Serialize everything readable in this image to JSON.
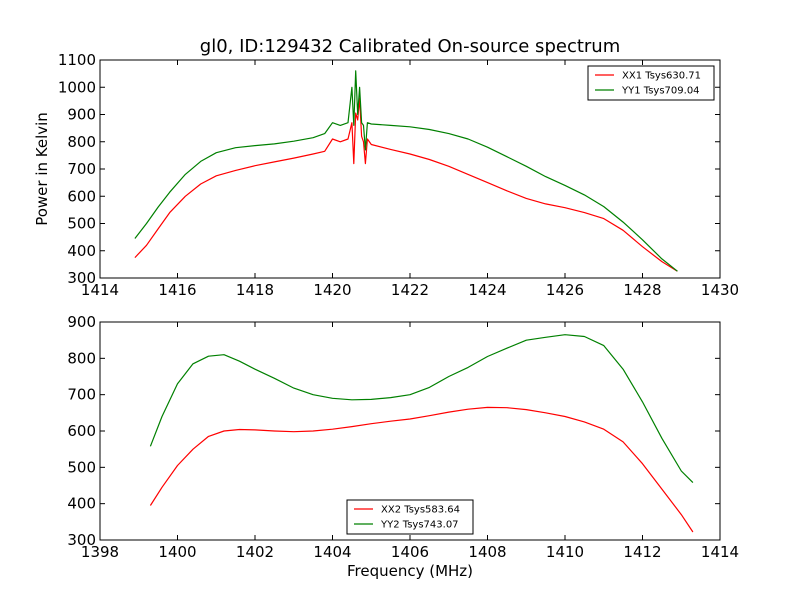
{
  "chart_data": [
    {
      "type": "line",
      "title": "gl0, ID:129432 Calibrated On-source spectrum",
      "xlabel": "",
      "ylabel": "Power in Kelvin",
      "xlim": [
        1414,
        1430
      ],
      "ylim": [
        300,
        1100
      ],
      "xticks": [
        1414,
        1416,
        1418,
        1420,
        1422,
        1424,
        1426,
        1428,
        1430
      ],
      "yticks": [
        300,
        400,
        500,
        600,
        700,
        800,
        900,
        1000,
        1100
      ],
      "grid": false,
      "legend": "top-right",
      "series": [
        {
          "name": "XX1 Tsys630.71",
          "color": "#ff0000",
          "x": [
            1414.9,
            1415.2,
            1415.5,
            1415.8,
            1416.2,
            1416.6,
            1417.0,
            1417.5,
            1418.0,
            1418.5,
            1419.0,
            1419.5,
            1419.8,
            1420.0,
            1420.2,
            1420.4,
            1420.5,
            1420.55,
            1420.6,
            1420.65,
            1420.7,
            1420.75,
            1420.8,
            1420.85,
            1420.9,
            1421.0,
            1421.5,
            1422.0,
            1422.5,
            1423.0,
            1423.5,
            1424.0,
            1424.5,
            1425.0,
            1425.5,
            1426.0,
            1426.5,
            1427.0,
            1427.5,
            1428.0,
            1428.5,
            1428.9
          ],
          "y": [
            375,
            420,
            480,
            540,
            600,
            645,
            675,
            695,
            712,
            726,
            740,
            755,
            765,
            810,
            800,
            810,
            870,
            720,
            905,
            880,
            960,
            820,
            800,
            720,
            810,
            790,
            772,
            755,
            735,
            710,
            680,
            650,
            620,
            592,
            572,
            558,
            540,
            518,
            475,
            415,
            360,
            325
          ]
        },
        {
          "name": "YY1 Tsys709.04",
          "color": "#008000",
          "x": [
            1414.9,
            1415.2,
            1415.5,
            1415.8,
            1416.2,
            1416.6,
            1417.0,
            1417.5,
            1418.0,
            1418.5,
            1419.0,
            1419.5,
            1419.8,
            1420.0,
            1420.2,
            1420.4,
            1420.5,
            1420.55,
            1420.6,
            1420.65,
            1420.7,
            1420.75,
            1420.8,
            1420.85,
            1420.9,
            1421.0,
            1421.5,
            1422.0,
            1422.5,
            1423.0,
            1423.5,
            1424.0,
            1424.5,
            1425.0,
            1425.5,
            1426.0,
            1426.5,
            1427.0,
            1427.5,
            1428.0,
            1428.5,
            1428.9
          ],
          "y": [
            445,
            500,
            560,
            615,
            680,
            728,
            760,
            778,
            786,
            792,
            802,
            815,
            830,
            870,
            860,
            870,
            1000,
            860,
            1060,
            900,
            1000,
            870,
            860,
            770,
            870,
            865,
            860,
            855,
            845,
            830,
            810,
            780,
            745,
            710,
            672,
            640,
            605,
            562,
            505,
            440,
            370,
            325
          ]
        }
      ]
    },
    {
      "type": "line",
      "title": "",
      "xlabel": "Frequency (MHz)",
      "ylabel": "",
      "xlim": [
        1398,
        1414
      ],
      "ylim": [
        300,
        900
      ],
      "xticks": [
        1398,
        1400,
        1402,
        1404,
        1406,
        1408,
        1410,
        1412,
        1414
      ],
      "yticks": [
        300,
        400,
        500,
        600,
        700,
        800,
        900
      ],
      "grid": false,
      "legend": "lower-center",
      "series": [
        {
          "name": "XX2 Tsys583.64",
          "color": "#ff0000",
          "x": [
            1399.3,
            1399.6,
            1400.0,
            1400.4,
            1400.8,
            1401.2,
            1401.6,
            1402.0,
            1402.5,
            1403.0,
            1403.5,
            1404.0,
            1404.5,
            1405.0,
            1405.5,
            1406.0,
            1406.5,
            1407.0,
            1407.5,
            1408.0,
            1408.5,
            1409.0,
            1409.5,
            1410.0,
            1410.5,
            1411.0,
            1411.5,
            1412.0,
            1412.5,
            1413.0,
            1413.3
          ],
          "y": [
            395,
            445,
            505,
            550,
            585,
            600,
            604,
            603,
            600,
            598,
            600,
            605,
            612,
            620,
            627,
            633,
            642,
            652,
            660,
            665,
            664,
            659,
            650,
            640,
            625,
            605,
            570,
            510,
            440,
            370,
            322
          ]
        },
        {
          "name": "YY2 Tsys743.07",
          "color": "#008000",
          "x": [
            1399.3,
            1399.6,
            1400.0,
            1400.4,
            1400.8,
            1401.2,
            1401.6,
            1402.0,
            1402.5,
            1403.0,
            1403.5,
            1404.0,
            1404.5,
            1405.0,
            1405.5,
            1406.0,
            1406.5,
            1407.0,
            1407.5,
            1408.0,
            1408.5,
            1409.0,
            1409.5,
            1410.0,
            1410.5,
            1411.0,
            1411.5,
            1412.0,
            1412.5,
            1413.0,
            1413.3
          ],
          "y": [
            558,
            640,
            730,
            785,
            806,
            810,
            792,
            770,
            745,
            718,
            700,
            690,
            686,
            687,
            692,
            700,
            720,
            750,
            775,
            805,
            828,
            850,
            858,
            865,
            860,
            835,
            770,
            680,
            580,
            490,
            458
          ]
        }
      ]
    }
  ]
}
